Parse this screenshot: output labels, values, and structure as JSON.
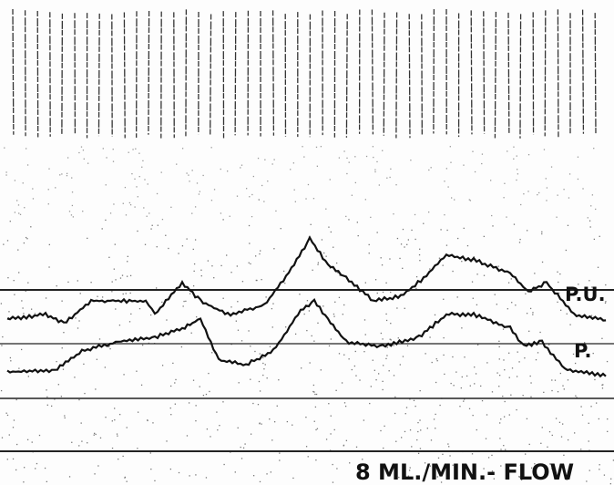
{
  "labels": {
    "trace_upper": "P.U.",
    "trace_lower": "P.",
    "flow": "8 ML./MIN.- FLOW"
  }
}
